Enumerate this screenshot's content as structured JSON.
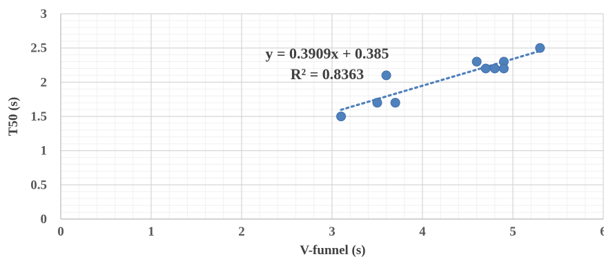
{
  "chart_data": {
    "type": "scatter",
    "xlabel": "V-funnel (s)",
    "ylabel": "T50 (s)",
    "xlim": [
      0,
      6
    ],
    "ylim": [
      0,
      3
    ],
    "x_ticks": [
      "0",
      "1",
      "2",
      "3",
      "4",
      "5",
      "6"
    ],
    "y_ticks": [
      "0",
      "0.5",
      "1",
      "1.5",
      "2",
      "2.5",
      "3"
    ],
    "grid": true,
    "series": [
      {
        "points": [
          {
            "x": 3.1,
            "y": 1.5
          },
          {
            "x": 3.5,
            "y": 1.7
          },
          {
            "x": 3.6,
            "y": 2.1
          },
          {
            "x": 3.7,
            "y": 1.7
          },
          {
            "x": 4.6,
            "y": 2.3
          },
          {
            "x": 4.7,
            "y": 2.2
          },
          {
            "x": 4.8,
            "y": 2.2
          },
          {
            "x": 4.9,
            "y": 2.3
          },
          {
            "x": 4.9,
            "y": 2.2
          },
          {
            "x": 5.3,
            "y": 2.5
          }
        ],
        "color": "#4f81bd"
      }
    ],
    "trendline": {
      "type": "linear",
      "slope": 0.3909,
      "intercept": 0.385,
      "x_range": [
        3.1,
        5.3
      ],
      "equation_label": "y = 0.3909x + 0.385",
      "r2_label": "R² = 0.8363",
      "color": "#4f81bd"
    }
  }
}
